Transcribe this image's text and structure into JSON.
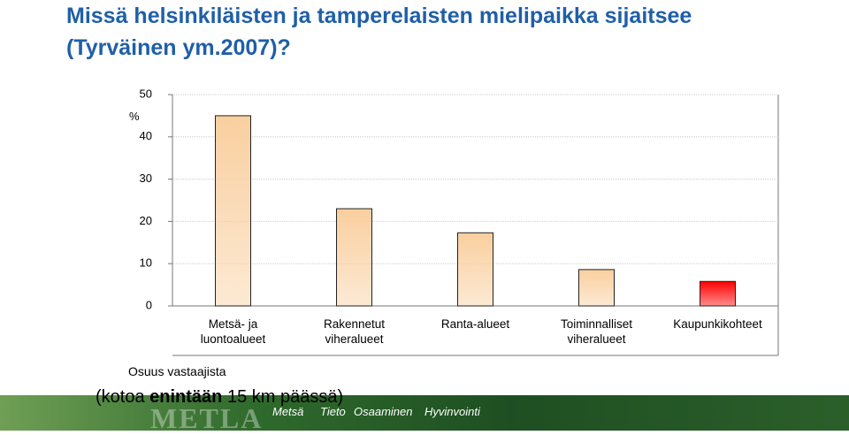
{
  "title": "Missä helsinkiläisten ja tamperelaisten mielipaikka sijaitsee (Tyrväinen ym.2007)?",
  "chart_data": {
    "type": "bar",
    "y_label": "%",
    "x_label": "Osuus vastaajista",
    "categories": [
      "Metsä- ja luontoalueet",
      "Rakennetut viheralueet",
      "Ranta-alueet",
      "Toiminnalliset viheralueet",
      "Kaupunkikohteet"
    ],
    "values": [
      45,
      23,
      17.3,
      8.6,
      5.8
    ],
    "colors": [
      "#f9cf9f",
      "#f9cf9f",
      "#f9cf9f",
      "#f9cf9f",
      "#ff0000"
    ],
    "ylim": [
      0,
      50
    ],
    "yticks": [
      0,
      10,
      20,
      30,
      40,
      50
    ],
    "grid": true
  },
  "note_parts": [
    "(kotoa ",
    "enintään",
    " 15 km päässä)"
  ],
  "footer": {
    "logo": "METLA",
    "motto": [
      "Metsä",
      "Tieto",
      "Osaaminen",
      "Hyvinvointi"
    ]
  }
}
